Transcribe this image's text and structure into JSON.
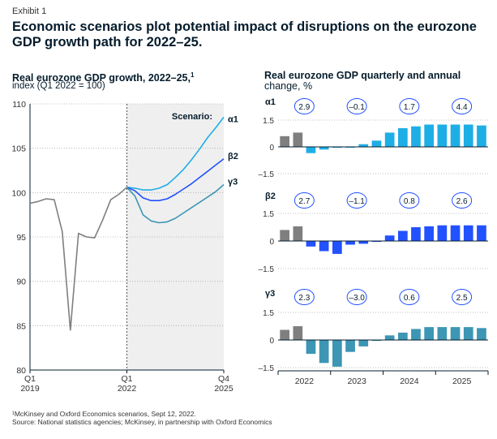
{
  "exhibit_label": "Exhibit 1",
  "title": "Economic scenarios plot potential impact of disruptions on the eurozone GDP growth path for 2022–25.",
  "left_panel": {
    "title": "Real eurozone GDP growth, 2022–25,",
    "title_sup": "1",
    "subtitle": "index (Q1 2022 = 100)"
  },
  "right_panel": {
    "title": "Real eurozone GDP quarterly and annual",
    "title_line2": "change, %"
  },
  "footnote": "¹McKinsey and Oxford Economics scenarios, Sept 12, 2022.",
  "source": "Source: National statistics agencies; McKinsey, in partnership with Oxford Economics",
  "colors": {
    "history": "#7f7f7f",
    "alpha": "#1eaee6",
    "beta": "#2251ff",
    "gamma": "#3c96b4",
    "shade": "#efefef",
    "axis": "#051c2c"
  },
  "chart_data": [
    {
      "type": "line",
      "id": "index_chart",
      "ylim": [
        80,
        110
      ],
      "yticks": [
        80,
        85,
        90,
        95,
        100,
        105,
        110
      ],
      "x_range": [
        0,
        24
      ],
      "x_ticks": [
        {
          "x": 0,
          "line1": "Q1",
          "line2": "2019"
        },
        {
          "x": 12,
          "line1": "Q1",
          "line2": "2022"
        },
        {
          "x": 24,
          "line1": "Q4",
          "line2": "2025"
        }
      ],
      "shade_start_x": 12,
      "shade_label": "Scenario:",
      "history": {
        "name": "Historical",
        "x": [
          0,
          1,
          2,
          3,
          4,
          5,
          6,
          7,
          8,
          9,
          10,
          11,
          12
        ],
        "y": [
          98.8,
          99.0,
          99.3,
          99.2,
          95.6,
          84.5,
          95.4,
          95.0,
          94.9,
          96.9,
          99.2,
          99.8,
          100.6
        ]
      },
      "series": [
        {
          "name": "α1",
          "x": [
            12,
            13,
            14,
            15,
            16,
            17,
            18,
            19,
            20,
            21,
            22,
            23,
            24
          ],
          "y": [
            100.6,
            100.5,
            100.3,
            100.3,
            100.5,
            100.9,
            101.7,
            102.6,
            103.7,
            104.9,
            106.2,
            107.3,
            108.5
          ]
        },
        {
          "name": "β2",
          "x": [
            12,
            13,
            14,
            15,
            16,
            17,
            18,
            19,
            20,
            21,
            22,
            23,
            24
          ],
          "y": [
            100.6,
            100.2,
            99.4,
            99.1,
            99.1,
            99.3,
            99.8,
            100.4,
            101.0,
            101.7,
            102.4,
            103.1,
            103.8
          ]
        },
        {
          "name": "γ3",
          "x": [
            12,
            13,
            14,
            15,
            16,
            17,
            18,
            19,
            20,
            21,
            22,
            23,
            24
          ],
          "y": [
            100.6,
            99.6,
            97.5,
            96.8,
            96.6,
            96.7,
            97.1,
            97.7,
            98.3,
            98.9,
            99.5,
            100.1,
            100.9
          ]
        }
      ]
    },
    {
      "type": "bar",
      "id": "quarterly_change",
      "ylim": [
        -1.5,
        1.5
      ],
      "yticks": [
        1.5,
        0,
        -1.5
      ],
      "ytick_labels": [
        "1.5",
        "0",
        "–1.5"
      ],
      "categories": [
        "Q1 2022",
        "Q2 2022",
        "Q3 2022",
        "Q4 2022",
        "Q1 2023",
        "Q2 2023",
        "Q3 2023",
        "Q4 2023",
        "Q1 2024",
        "Q2 2024",
        "Q3 2024",
        "Q4 2024",
        "Q1 2025",
        "Q2 2025",
        "Q3 2025",
        "Q4 2025"
      ],
      "year_labels": [
        "2022",
        "2023",
        "2024",
        "2025"
      ],
      "actual_count": 2,
      "series": [
        {
          "name": "α1",
          "values": [
            0.6,
            0.8,
            -0.35,
            -0.15,
            -0.05,
            0.0,
            0.15,
            0.35,
            0.8,
            1.05,
            1.15,
            1.25,
            1.25,
            1.25,
            1.25,
            1.2
          ],
          "annual": [
            "2.9",
            "–0.1",
            "1.7",
            "4.4"
          ]
        },
        {
          "name": "β2",
          "values": [
            0.6,
            0.8,
            -0.3,
            -0.55,
            -0.7,
            -0.2,
            -0.15,
            -0.05,
            0.3,
            0.55,
            0.75,
            0.8,
            0.85,
            0.85,
            0.85,
            0.85
          ],
          "annual": [
            "2.7",
            "–1.1",
            "0.8",
            "2.6"
          ]
        },
        {
          "name": "γ3",
          "values": [
            0.55,
            0.75,
            -0.75,
            -1.25,
            -1.45,
            -0.65,
            -0.35,
            -0.05,
            0.25,
            0.4,
            0.6,
            0.7,
            0.7,
            0.7,
            0.7,
            0.65
          ],
          "annual": [
            "2.3",
            "–3.0",
            "0.6",
            "2.5"
          ]
        }
      ]
    }
  ]
}
